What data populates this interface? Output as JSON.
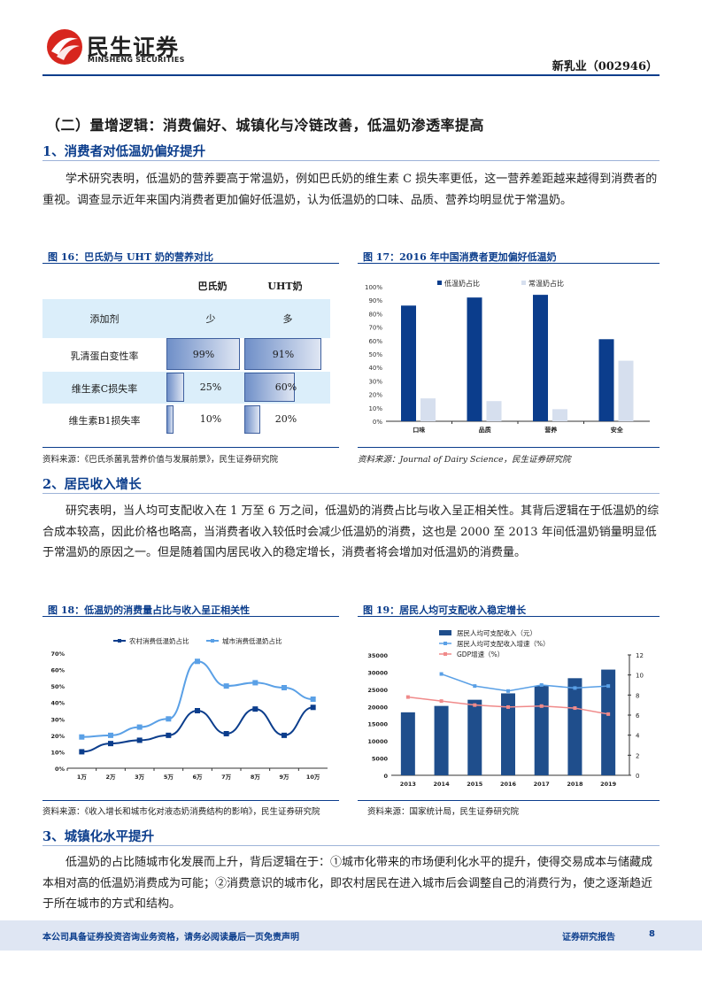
{
  "header": {
    "logo_cn": "民生证券",
    "logo_en": "MINSHENG SECURITIES",
    "company": "新乳业（002946）"
  },
  "section": {
    "title": "（二）量增逻辑：消费偏好、城镇化与冷链改善，低温奶渗透率提高"
  },
  "sub1": {
    "title": "1、消费者对低温奶偏好提升",
    "para": "学术研究表明，低温奶的营养要高于常温奶，例如巴氏奶的维生素 C 损失率更低，这一营养差距越来越得到消费者的重视。调查显示近年来国内消费者更加偏好低温奶，认为低温奶的口味、品质、营养均明显优于常温奶。"
  },
  "fig16": {
    "title": "图 16：巴氏奶与 UHT 奶的营养对比",
    "col_a": "巴氏奶",
    "col_b": "UHT奶",
    "rows": [
      {
        "label": "添加剂",
        "a": "少",
        "b": "多"
      },
      {
        "label": "乳清蛋白变性率",
        "a": "99%",
        "b": "91%",
        "av": 99,
        "bv": 91
      },
      {
        "label": "维生素C损失率",
        "a": "25%",
        "b": "60%",
        "av": 25,
        "bv": 60
      },
      {
        "label": "维生素B1损失率",
        "a": "10%",
        "b": "20%",
        "av": 10,
        "bv": 20
      }
    ],
    "source": "资料来源：《巴氏杀菌乳营养价值与发展前景》，民生证券研究院"
  },
  "fig17": {
    "title": "图 17：2016 年中国消费者更加偏好低温奶",
    "source": "资料来源：Journal of Dairy Science，民生证券研究院"
  },
  "sub2": {
    "title": "2、居民收入增长",
    "para": "研究表明，当人均可支配收入在 1 万至 6 万之间，低温奶的消费占比与收入呈正相关性。其背后逻辑在于低温奶的综合成本较高，因此价格也略高，当消费者收入较低时会减少低温奶的消费，这也是 2000 至 2013 年间低温奶销量明显低于常温奶的原因之一。但是随着国内居民收入的稳定增长，消费者将会增加对低温奶的消费量。"
  },
  "fig18": {
    "title": "图 18：低温奶的消费量占比与收入呈正相关性",
    "source": "资料来源：《收入增长和城市化对液态奶消费结构的影响》，民生证券研究院"
  },
  "fig19": {
    "title": "图 19：居民人均可支配收入稳定增长",
    "source": "资料来源：国家统计局，民生证券研究院"
  },
  "sub3": {
    "title": "3、城镇化水平提升",
    "para": "低温奶的占比随城市化发展而上升，背后逻辑在于：①城市化带来的市场便利化水平的提升，使得交易成本与储藏成本相对高的低温奶消费成为可能；②消费意识的城市化，即农村居民在进入城市后会调整自己的消费行为，使之逐渐趋近于所在城市的方式和结构。"
  },
  "footer": {
    "disclaimer": "本公司具备证券投资咨询业务资格，请务必阅读最后一页免责声明",
    "report_type": "证券研究报告",
    "page": "8"
  },
  "chart_data": [
    {
      "type": "bar",
      "categories": [
        "口味",
        "品质",
        "营养",
        "安全"
      ],
      "series": [
        {
          "name": "低温奶占比",
          "values": [
            86,
            92,
            94,
            61
          ],
          "color": "#0b3d8c"
        },
        {
          "name": "常温奶占比",
          "values": [
            17,
            15,
            9,
            45
          ],
          "color": "#d6dfee"
        }
      ],
      "yticks": [
        "0%",
        "10%",
        "20%",
        "30%",
        "40%",
        "50%",
        "60%",
        "70%",
        "80%",
        "90%",
        "100%"
      ],
      "ylim": [
        0,
        100
      ]
    },
    {
      "type": "line",
      "categories": [
        "1万",
        "2万",
        "3万",
        "5万",
        "6万",
        "7万",
        "8万",
        "9万",
        "10万"
      ],
      "series": [
        {
          "name": "农村消费低温奶占比",
          "values": [
            10,
            15,
            17,
            20,
            35,
            21,
            36,
            20,
            37
          ],
          "color": "#0b3d8c"
        },
        {
          "name": "城市消费低温奶占比",
          "values": [
            19,
            20,
            25,
            30,
            65,
            50,
            52,
            49,
            42
          ],
          "color": "#5aa0e6"
        }
      ],
      "yticks": [
        "0%",
        "10%",
        "20%",
        "30%",
        "40%",
        "50%",
        "60%",
        "70%"
      ],
      "ylim": [
        0,
        70
      ]
    },
    {
      "type": "bar",
      "categories": [
        "2013",
        "2014",
        "2015",
        "2016",
        "2017",
        "2018",
        "2019"
      ],
      "bar_series": {
        "name": "居民人均可支配收入（元）",
        "values": [
          18311,
          20167,
          21966,
          23821,
          25974,
          28228,
          30733
        ],
        "color": "#1f4e8c"
      },
      "line_series": [
        {
          "name": "居民人均可支配收入增速（%）",
          "values": [
            null,
            10.1,
            8.9,
            8.4,
            9.0,
            8.7,
            8.9
          ],
          "color": "#5aa0e6"
        },
        {
          "name": "GDP增速（%）",
          "values": [
            7.8,
            7.4,
            7.0,
            6.8,
            6.9,
            6.7,
            6.1
          ],
          "color": "#f08a8a"
        }
      ],
      "yticks_left": [
        "0",
        "5000",
        "10000",
        "15000",
        "20000",
        "25000",
        "30000",
        "35000"
      ],
      "yticks_right": [
        "0",
        "2",
        "4",
        "6",
        "8",
        "10",
        "12"
      ],
      "ylim_left": [
        0,
        35000
      ],
      "ylim_right": [
        0,
        12
      ]
    }
  ]
}
